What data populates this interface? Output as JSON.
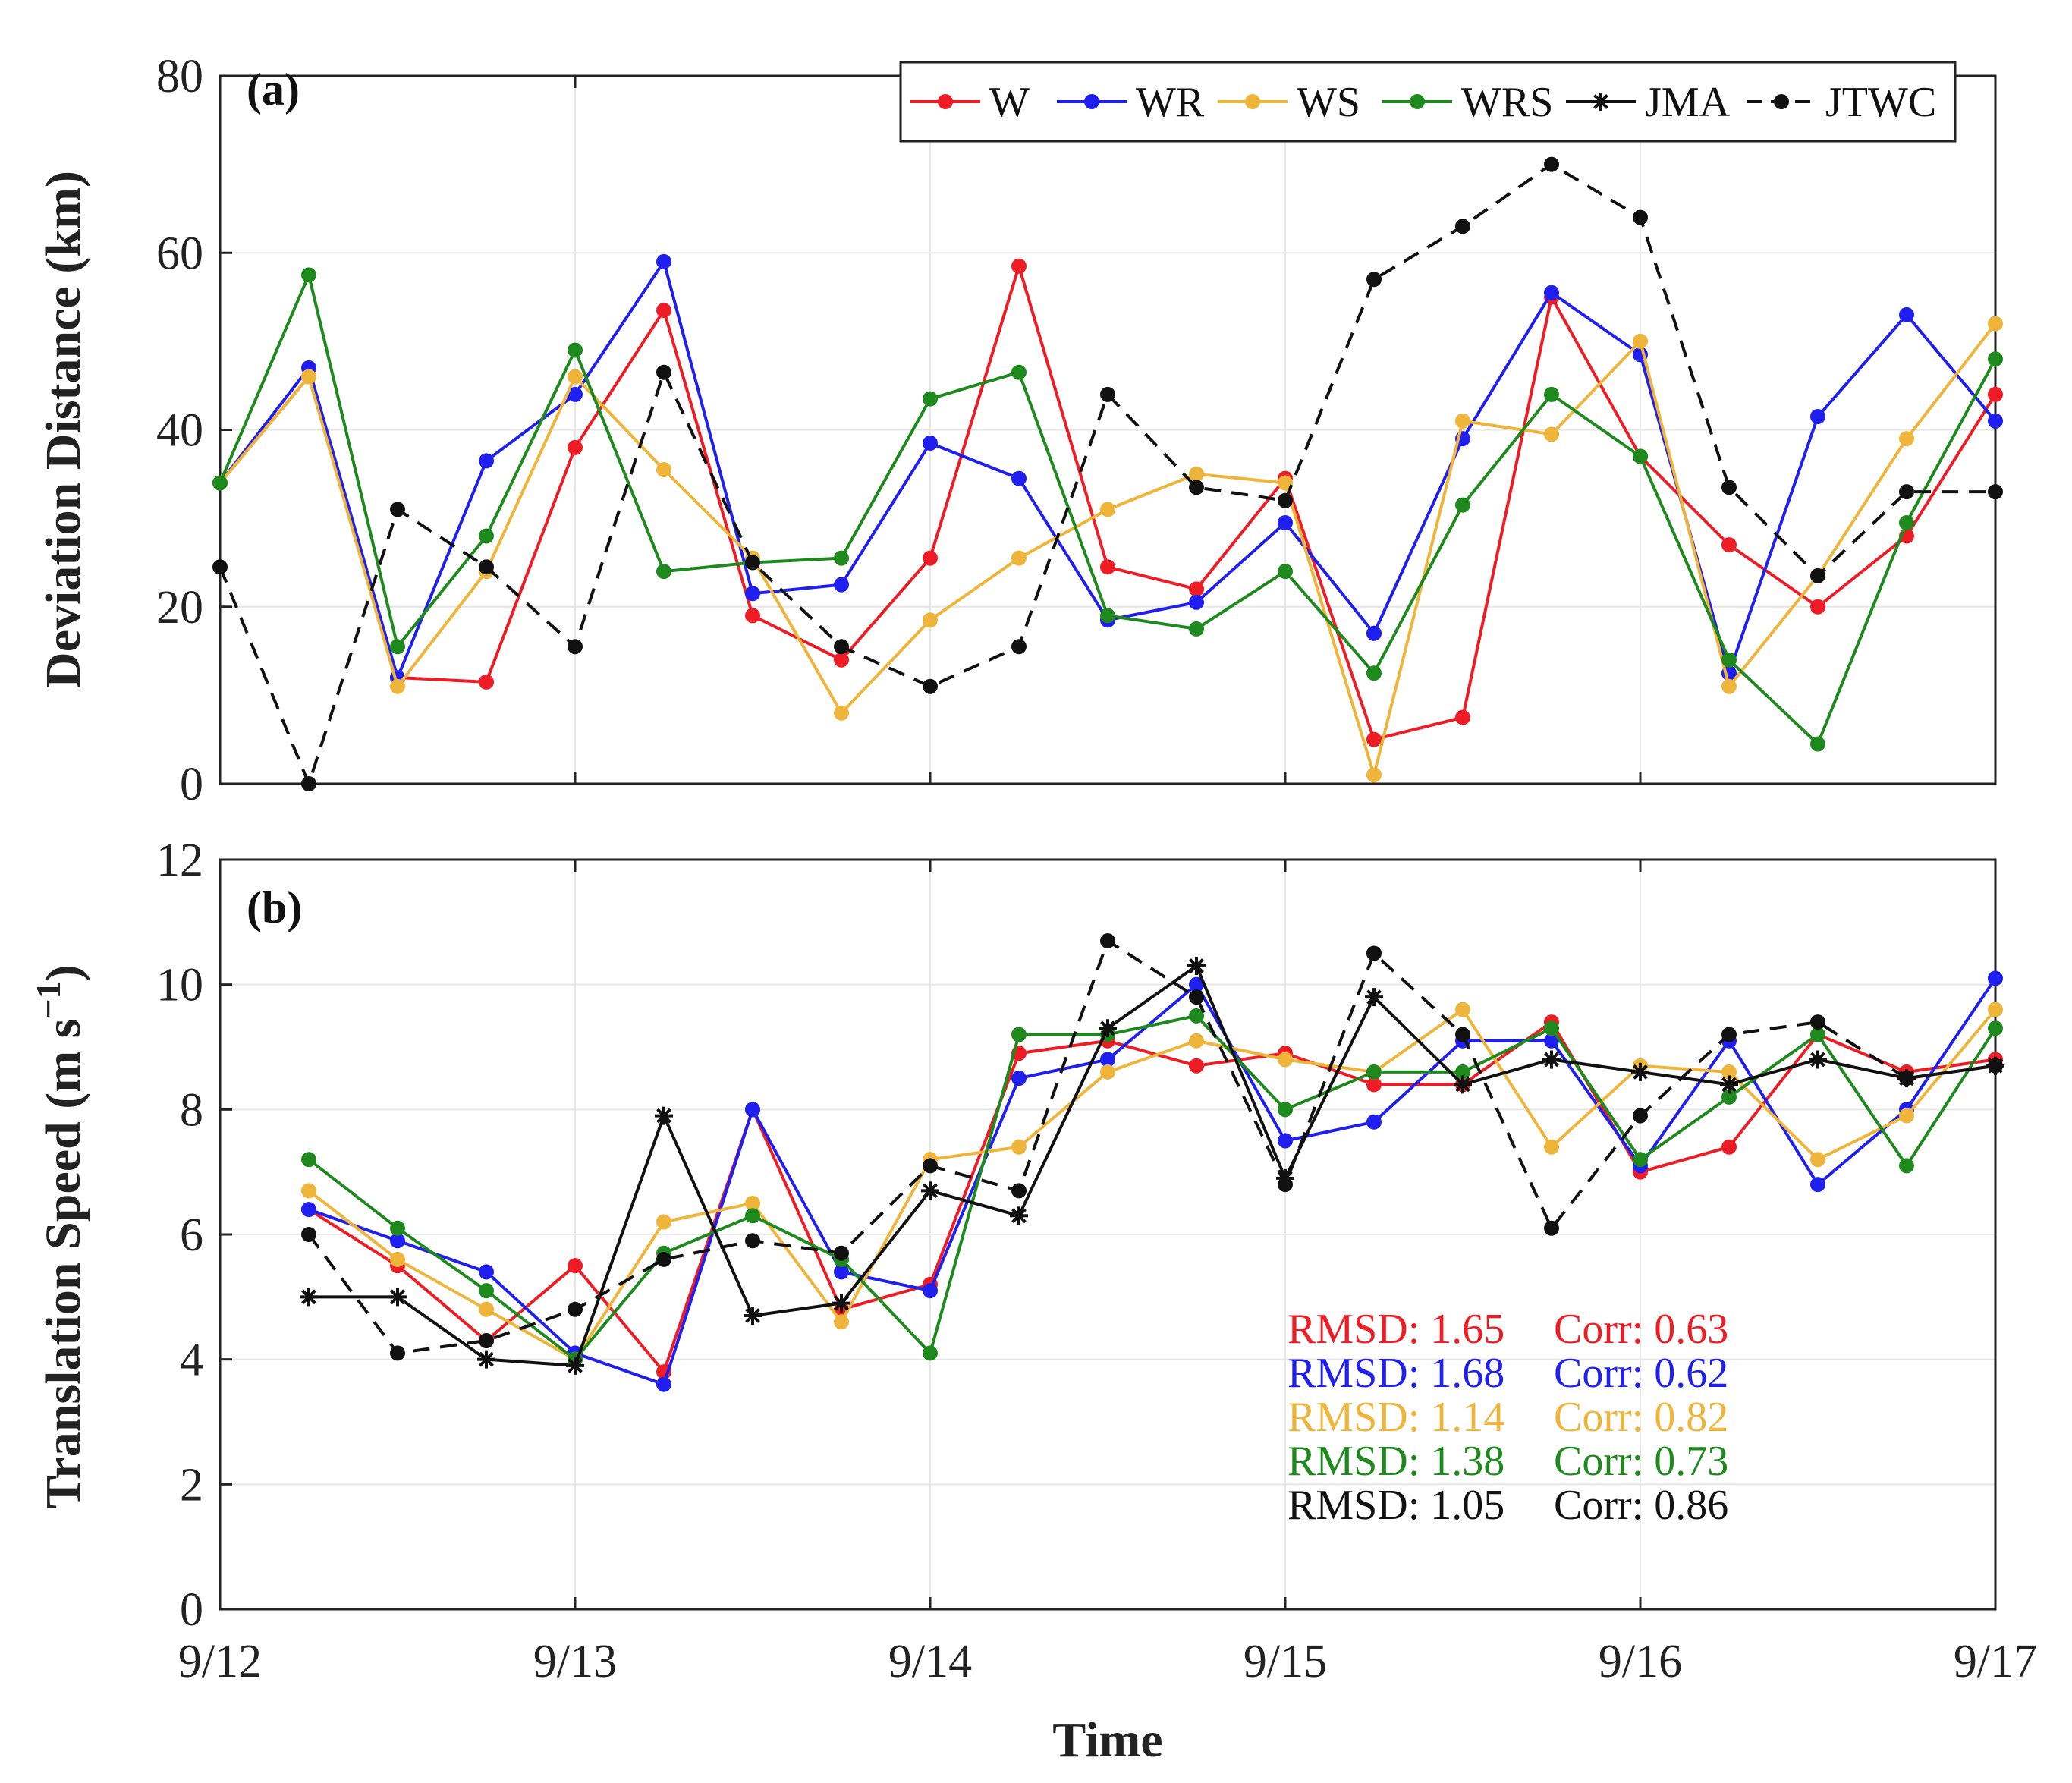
{
  "colors": {
    "W": "#ee1c25",
    "WR": "#1f1ff0",
    "WS": "#efb53b",
    "WRS": "#1e8a1e",
    "JMA": "#111111",
    "JTWC": "#111111"
  },
  "x_axis": {
    "label": "Time",
    "ticks": [
      "9/12",
      "9/13",
      "9/14",
      "9/15",
      "9/16",
      "9/17"
    ]
  },
  "chart_data": [
    {
      "type": "line",
      "panel_label": "(a)",
      "ylabel": "Deviation Distance (km)",
      "ylim": [
        0,
        80
      ],
      "yticks": [
        0,
        20,
        40,
        60,
        80
      ],
      "xlim": [
        0,
        20
      ],
      "grid": true,
      "legend": {
        "placement": "top-right",
        "orientation": "horizontal",
        "entries": [
          "W",
          "WR",
          "WS",
          "WRS",
          "JMA",
          "JTWC"
        ]
      },
      "series": [
        {
          "name": "W",
          "style": "solid",
          "marker": "dot",
          "x": [
            0,
            1,
            2,
            3,
            4,
            5,
            6,
            7,
            8,
            9,
            10,
            11,
            12,
            13,
            14,
            15,
            16,
            17,
            18,
            19,
            20
          ],
          "values": [
            34,
            46,
            12,
            11.5,
            38,
            53.5,
            19,
            14,
            25.5,
            58.5,
            24.5,
            22,
            34.5,
            5,
            7.5,
            55,
            37,
            27,
            20,
            28,
            44
          ]
        },
        {
          "name": "WR",
          "style": "solid",
          "marker": "dot",
          "x": [
            0,
            1,
            2,
            3,
            4,
            5,
            6,
            7,
            8,
            9,
            10,
            11,
            12,
            13,
            14,
            15,
            16,
            17,
            18,
            19,
            20
          ],
          "values": [
            34,
            47,
            12,
            36.5,
            44,
            59,
            21.5,
            22.5,
            38.5,
            34.5,
            18.5,
            20.5,
            29.5,
            17,
            39,
            55.5,
            48.5,
            12.5,
            41.5,
            53,
            41
          ]
        },
        {
          "name": "WS",
          "style": "solid",
          "marker": "dot",
          "x": [
            0,
            1,
            2,
            3,
            4,
            5,
            6,
            7,
            8,
            9,
            10,
            11,
            12,
            13,
            14,
            15,
            16,
            17,
            18,
            19,
            20
          ],
          "values": [
            34,
            46,
            11,
            24,
            46,
            35.5,
            25.5,
            8,
            18.5,
            25.5,
            31,
            35,
            34,
            1,
            41,
            39.5,
            50,
            11,
            23.5,
            39,
            52
          ]
        },
        {
          "name": "WRS",
          "style": "solid",
          "marker": "dot",
          "x": [
            0,
            1,
            2,
            3,
            4,
            5,
            6,
            7,
            8,
            9,
            10,
            11,
            12,
            13,
            14,
            15,
            16,
            17,
            18,
            19,
            20
          ],
          "values": [
            34,
            57.5,
            15.5,
            28,
            49,
            24,
            25,
            25.5,
            43.5,
            46.5,
            19,
            17.5,
            24,
            12.5,
            31.5,
            44,
            37,
            14,
            4.5,
            29.5,
            48
          ]
        },
        {
          "name": "JTWC",
          "style": "dashed",
          "marker": "dot",
          "x": [
            0,
            1,
            2,
            3,
            4,
            5,
            6,
            7,
            8,
            9,
            10,
            11,
            12,
            13,
            14,
            15,
            16,
            17,
            18,
            19,
            20
          ],
          "values": [
            24.5,
            0,
            31,
            24.5,
            15.5,
            46.5,
            25,
            15.5,
            11,
            15.5,
            44,
            33.5,
            32,
            57,
            63,
            70,
            64,
            33.5,
            23.5,
            33,
            33
          ]
        }
      ]
    },
    {
      "type": "line",
      "panel_label": "(b)",
      "ylabel": "Translation Speed (m s",
      "ylabel_sup": "−1",
      "ylabel_close": ")",
      "ylim": [
        0,
        12
      ],
      "yticks": [
        0,
        2,
        4,
        6,
        8,
        10,
        12
      ],
      "xlim": [
        0,
        20
      ],
      "grid": true,
      "series": [
        {
          "name": "W",
          "style": "solid",
          "marker": "dot",
          "x": [
            1,
            2,
            3,
            4,
            5,
            6,
            7,
            8,
            9,
            10,
            11,
            12,
            13,
            14,
            15,
            16,
            17,
            18,
            19,
            20
          ],
          "values": [
            6.4,
            5.5,
            4.3,
            5.5,
            3.8,
            8,
            4.8,
            5.2,
            8.9,
            9.1,
            8.7,
            8.9,
            8.4,
            8.4,
            9.4,
            7,
            7.4,
            9.2,
            8.6,
            8.8
          ]
        },
        {
          "name": "WR",
          "style": "solid",
          "marker": "dot",
          "x": [
            1,
            2,
            3,
            4,
            5,
            6,
            7,
            8,
            9,
            10,
            11,
            12,
            13,
            14,
            15,
            16,
            17,
            18,
            19,
            20
          ],
          "values": [
            6.4,
            5.9,
            5.4,
            4.1,
            3.6,
            8,
            5.4,
            5.1,
            8.5,
            8.8,
            10,
            7.5,
            7.8,
            9.1,
            9.1,
            7.1,
            9.1,
            6.8,
            8,
            10.1
          ]
        },
        {
          "name": "WS",
          "style": "solid",
          "marker": "dot",
          "x": [
            1,
            2,
            3,
            4,
            5,
            6,
            7,
            8,
            9,
            10,
            11,
            12,
            13,
            14,
            15,
            16,
            17,
            18,
            19,
            20
          ],
          "values": [
            6.7,
            5.6,
            4.8,
            4,
            6.2,
            6.5,
            4.6,
            7.2,
            7.4,
            8.6,
            9.1,
            8.8,
            8.6,
            9.6,
            7.4,
            8.7,
            8.6,
            7.2,
            7.9,
            9.6
          ]
        },
        {
          "name": "WRS",
          "style": "solid",
          "marker": "dot",
          "x": [
            1,
            2,
            3,
            4,
            5,
            6,
            7,
            8,
            9,
            10,
            11,
            12,
            13,
            14,
            15,
            16,
            17,
            18,
            19,
            20
          ],
          "values": [
            7.2,
            6.1,
            5.1,
            4,
            5.7,
            6.3,
            5.6,
            4.1,
            9.2,
            9.2,
            9.5,
            8,
            8.6,
            8.6,
            9.3,
            7.2,
            8.2,
            9.2,
            7.1,
            9.3
          ]
        },
        {
          "name": "JMA",
          "style": "solid",
          "marker": "star",
          "x": [
            1,
            2,
            3,
            4,
            5,
            6,
            7,
            8,
            9,
            10,
            11,
            12,
            13,
            14,
            15,
            16,
            17,
            18,
            19,
            20
          ],
          "values": [
            5,
            5,
            4,
            3.9,
            7.9,
            4.7,
            4.9,
            6.7,
            6.3,
            9.3,
            10.3,
            6.9,
            9.8,
            8.4,
            8.8,
            8.6,
            8.4,
            8.8,
            8.5,
            8.7
          ]
        },
        {
          "name": "JTWC",
          "style": "dashed",
          "marker": "dot",
          "x": [
            1,
            2,
            3,
            4,
            5,
            6,
            7,
            8,
            9,
            10,
            11,
            12,
            13,
            14,
            15,
            16,
            17,
            18,
            19,
            20
          ],
          "values": [
            6,
            4.1,
            4.3,
            4.8,
            5.6,
            5.9,
            5.7,
            7.1,
            6.7,
            10.7,
            9.8,
            6.8,
            10.5,
            9.2,
            6.1,
            7.9,
            9.2,
            9.4,
            8.5,
            8.7
          ]
        }
      ],
      "annotations": [
        {
          "series": "W",
          "rmsd_text": "RMSD: 1.65",
          "corr_text": "Corr: 0.63"
        },
        {
          "series": "WR",
          "rmsd_text": "RMSD: 1.68",
          "corr_text": "Corr: 0.62"
        },
        {
          "series": "WS",
          "rmsd_text": "RMSD: 1.14",
          "corr_text": "Corr: 0.82"
        },
        {
          "series": "WRS",
          "rmsd_text": "RMSD: 1.38",
          "corr_text": "Corr: 0.73"
        },
        {
          "series": "JMA",
          "rmsd_text": "RMSD: 1.05",
          "corr_text": "Corr: 0.86"
        }
      ]
    }
  ]
}
